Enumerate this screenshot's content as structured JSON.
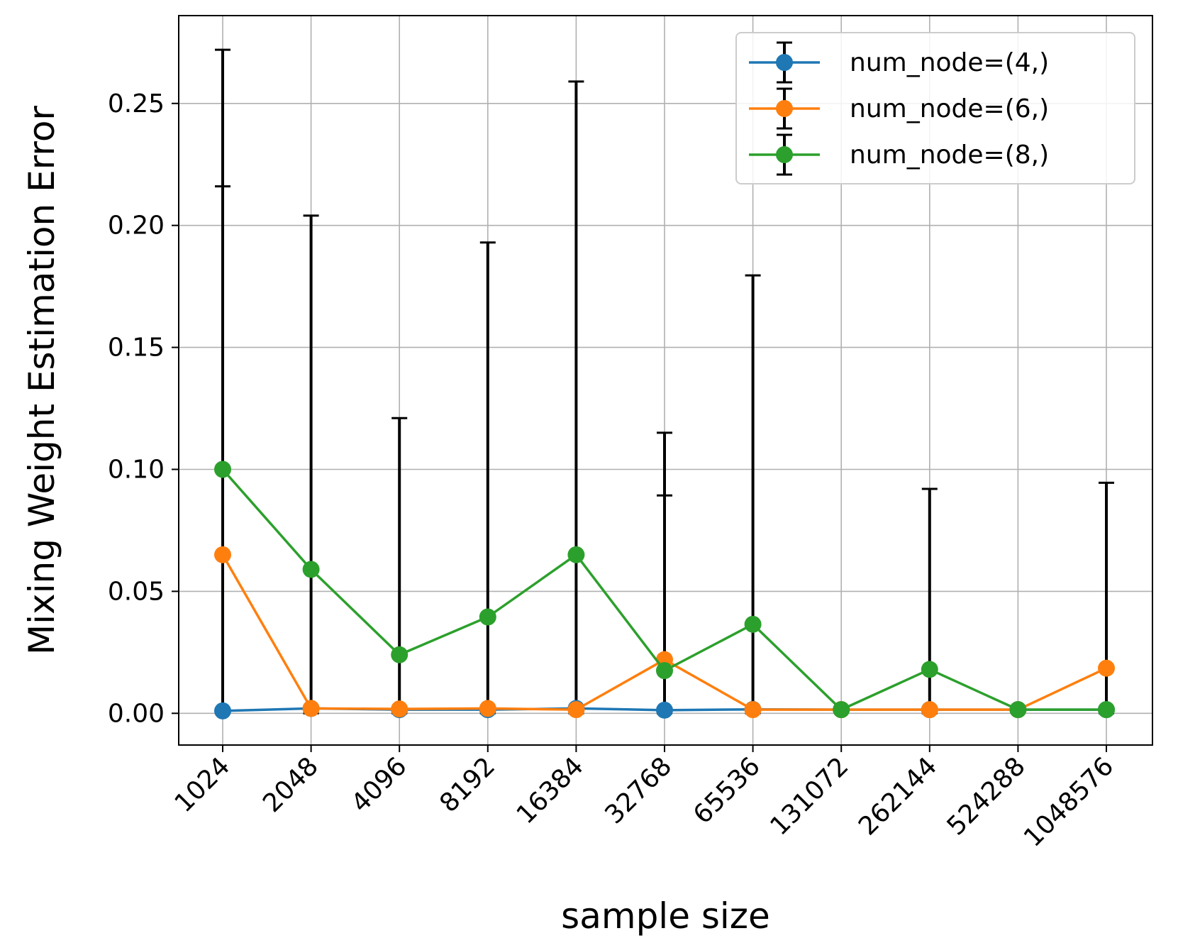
{
  "chart_data": {
    "type": "line",
    "title": "",
    "xlabel": "sample size",
    "ylabel": "Mixing Weight Estimation Error",
    "categories": [
      "1024",
      "2048",
      "4096",
      "8192",
      "16384",
      "32768",
      "65536",
      "131072",
      "262144",
      "524288",
      "1048576"
    ],
    "yticks": [
      "0.00",
      "0.05",
      "0.10",
      "0.15",
      "0.20",
      "0.25"
    ],
    "ylim": [
      -0.013,
      0.286
    ],
    "grid": true,
    "legend_position": "top-right",
    "series": [
      {
        "name": "num_node=(4,)",
        "color": "#1f77b4",
        "values": [
          0.001,
          0.002,
          0.0015,
          0.0015,
          0.002,
          0.0013,
          0.0016,
          0.0015,
          0.0015,
          0.0015,
          0.0015
        ],
        "err_plus": [
          0.215,
          0.0003,
          0.0003,
          0.0003,
          0.0003,
          0.088,
          0.0003,
          0.0003,
          0.0003,
          0.0003,
          0.0003
        ]
      },
      {
        "name": "num_node=(6,)",
        "color": "#ff7f0e",
        "values": [
          0.065,
          0.002,
          0.0018,
          0.002,
          0.0015,
          0.022,
          0.0015,
          0.0015,
          0.0015,
          0.0015,
          0.0185
        ],
        "err_plus": [
          0.0,
          0.0003,
          0.0003,
          0.0003,
          0.0003,
          0.093,
          0.0003,
          0.0003,
          0.0003,
          0.0003,
          0.076
        ]
      },
      {
        "name": "num_node=(8,)",
        "color": "#2ca02c",
        "values": [
          0.1,
          0.059,
          0.024,
          0.0395,
          0.065,
          0.0175,
          0.0365,
          0.0015,
          0.018,
          0.0015,
          0.0015
        ],
        "err_plus": [
          0.172,
          0.145,
          0.097,
          0.1535,
          0.194,
          0.0,
          0.143,
          0.0003,
          0.074,
          0.0003,
          0.0003
        ]
      }
    ]
  }
}
